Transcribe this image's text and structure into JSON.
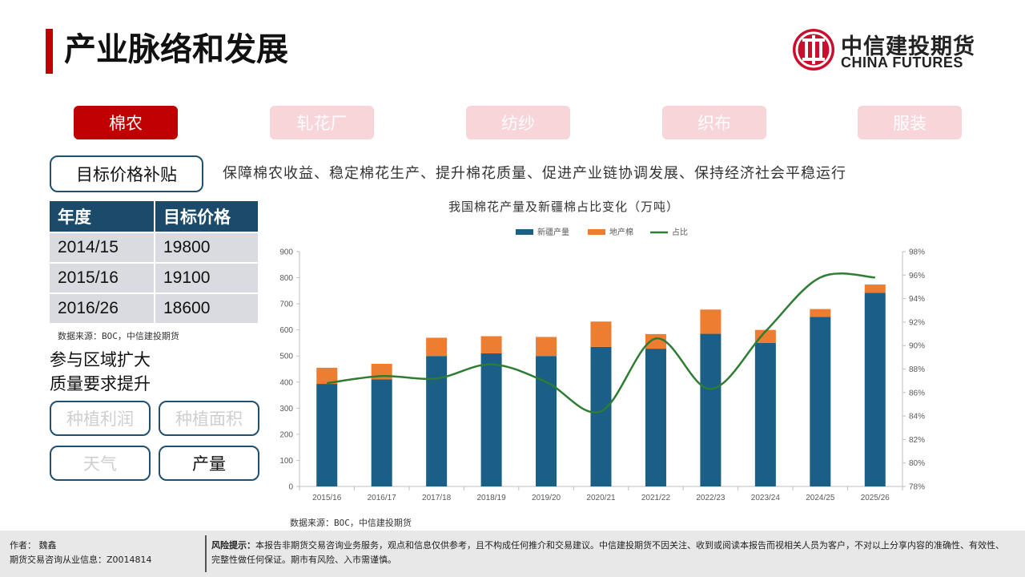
{
  "header": {
    "title": "产业脉络和发展",
    "logo_cn": "中信建投期货",
    "logo_en": "CHINA FUTURES",
    "accent_color": "#c00000"
  },
  "chain_tabs": [
    "棉农",
    "轧花厂",
    "纺纱",
    "织布",
    "服装"
  ],
  "policy": {
    "button_label": "目标价格补贴",
    "goal_text": "保障棉农收益、稳定棉花生产、提升棉花质量、促进产业链协调发展、保持经济社会平稳运行"
  },
  "price_table": {
    "headers": [
      "年度",
      "目标价格"
    ],
    "rows": [
      [
        "2014/15",
        "19800"
      ],
      [
        "2015/16",
        "19100"
      ],
      [
        "2016/26",
        "18600"
      ]
    ],
    "source": "数据来源：BOC，中信建投期货"
  },
  "points": {
    "line1": "参与区域扩大",
    "line2": "质量要求提升"
  },
  "factor_buttons": [
    "种植利润",
    "种植面积",
    "天气",
    "产量"
  ],
  "chart_source": "数据来源：BOC，中信建投期货",
  "footer": {
    "author": "作者：  魏鑫",
    "license": "期货交易咨询从业信息：Z0014814",
    "risk_label": "风险提示：",
    "risk_text": "本报告非期货交易咨询业务服务，观点和信息仅供参考，且不构成任何推介和交易建议。中信建投期货不因关注、收到或阅读本报告而视相关人员为客户，不对以上分享内容的准确性、有效性、完整性做任何保证。期市有风险、入市需谨慎。"
  },
  "chart_data": {
    "type": "bar",
    "title": "我国棉花产量及新疆棉占比变化（万吨）",
    "categories": [
      "2015/16",
      "2016/17",
      "2017/18",
      "2018/19",
      "2019/20",
      "2020/21",
      "2021/22",
      "2022/23",
      "2023/24",
      "2024/25",
      "2025/26"
    ],
    "series": [
      {
        "name": "新疆产量",
        "type": "bar",
        "stacked": true,
        "color": "#1b5e86",
        "values": [
          393,
          410,
          500,
          510,
          500,
          535,
          528,
          585,
          550,
          650,
          742
        ]
      },
      {
        "name": "地产棉",
        "type": "bar",
        "stacked": true,
        "color": "#ed7d31",
        "values": [
          62,
          60,
          70,
          66,
          73,
          97,
          56,
          93,
          50,
          30,
          32
        ]
      },
      {
        "name": "占比",
        "type": "line",
        "axis": "right",
        "color": "#2e7d32",
        "values": [
          86.8,
          87.4,
          87.2,
          88.4,
          86.9,
          84.4,
          90.6,
          86.3,
          91.2,
          95.8,
          95.8
        ]
      }
    ],
    "ylim_left": [
      0,
      900
    ],
    "yticks_left": [
      "0",
      "100",
      "200",
      "300",
      "400",
      "500",
      "600",
      "700",
      "800",
      "900"
    ],
    "ylim_right": [
      78,
      98
    ],
    "yticks_right": [
      "78%",
      "80%",
      "82%",
      "84%",
      "86%",
      "88%",
      "90%",
      "92%",
      "94%",
      "96%",
      "98%"
    ],
    "legend": [
      "新疆产量",
      "地产棉",
      "占比"
    ],
    "legend_position": "top-center"
  }
}
